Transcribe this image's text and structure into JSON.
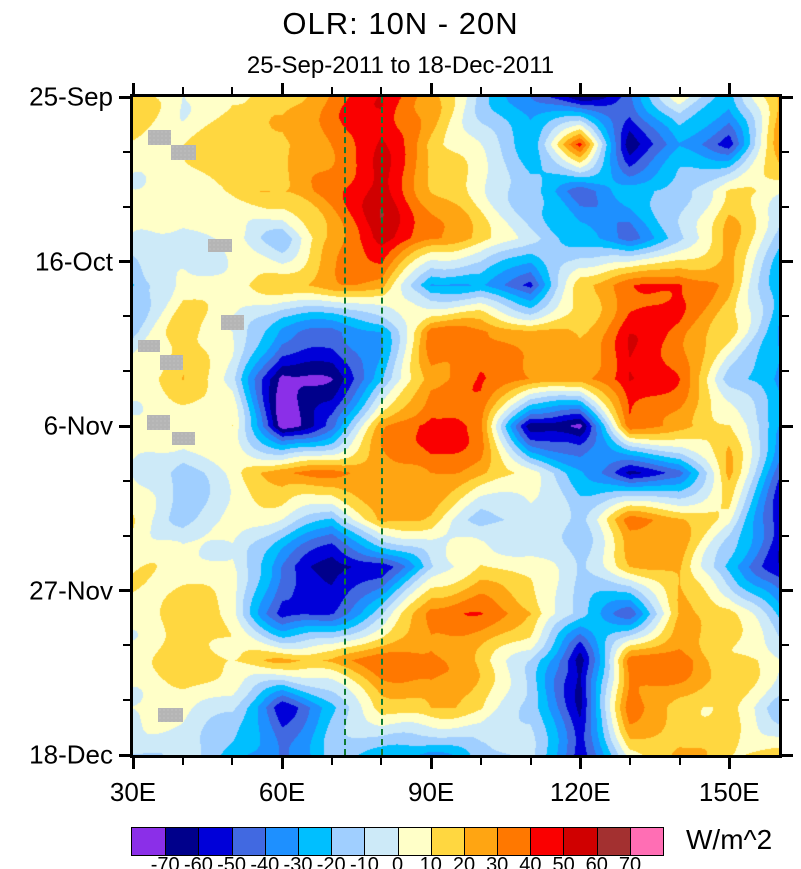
{
  "chart_data": {
    "type": "heatmap",
    "title": "OLR: 10N - 20N",
    "subtitle": "25-Sep-2011 to 18-Dec-2011",
    "units_label": "W/m^2",
    "x_axis": {
      "min": 30,
      "max": 160,
      "major_ticks": [
        30,
        60,
        90,
        120,
        150
      ],
      "major_tick_labels": [
        "30E",
        "60E",
        "90E",
        "120E",
        "150E"
      ],
      "minor_ticks": [
        40,
        50,
        70,
        80,
        100,
        110,
        130,
        140
      ]
    },
    "y_axis": {
      "min_day": 0,
      "max_day": 84,
      "major_tick_days": [
        0,
        21,
        42,
        63,
        84
      ],
      "major_tick_labels": [
        "25-Sep",
        "16-Oct",
        "6-Nov",
        "27-Nov",
        "18-Dec"
      ],
      "minor_tick_days": [
        7,
        14,
        28,
        35,
        49,
        56,
        70,
        77
      ]
    },
    "colorbar": {
      "levels": [
        -70,
        -60,
        -50,
        -40,
        -30,
        -20,
        -10,
        0,
        10,
        20,
        30,
        40,
        50,
        60,
        70
      ],
      "level_labels": [
        "-70",
        "-60",
        "-50",
        "-40",
        "-30",
        "-20",
        "-10",
        "0",
        "10",
        "20",
        "30",
        "40",
        "50",
        "60",
        "70"
      ],
      "colors": [
        "#8b2fe8",
        "#00008b",
        "#0000d9",
        "#4169e1",
        "#1e90ff",
        "#00bfff",
        "#a0cfff",
        "#cdeaf8",
        "#ffffc8",
        "#ffd740",
        "#ffa512",
        "#ff7800",
        "#fa0000",
        "#d00000",
        "#a33030",
        "#ff6eb4"
      ],
      "units": "W/m^2"
    },
    "reference_lines": {
      "lons": [
        72.5,
        80
      ],
      "color": "#0e7a33",
      "style": "dashed"
    },
    "missing_data_patches": [
      {
        "lon": [
          33.0,
          37.6
        ],
        "day": [
          4.2,
          6.1
        ]
      },
      {
        "lon": [
          37.6,
          42.6
        ],
        "day": [
          6.1,
          8.0
        ]
      },
      {
        "lon": [
          45.0,
          50.0
        ],
        "day": [
          18.1,
          19.8
        ]
      },
      {
        "lon": [
          47.8,
          52.4
        ],
        "day": [
          27.8,
          29.7
        ]
      },
      {
        "lon": [
          31.0,
          35.4
        ],
        "day": [
          31.0,
          32.6
        ]
      },
      {
        "lon": [
          35.4,
          40.0
        ],
        "day": [
          32.9,
          34.9
        ]
      },
      {
        "lon": [
          32.8,
          37.4
        ],
        "day": [
          40.6,
          42.5
        ]
      },
      {
        "lon": [
          37.8,
          42.4
        ],
        "day": [
          42.8,
          44.4
        ]
      },
      {
        "lon": [
          35.0,
          40.0
        ],
        "day": [
          78.0,
          79.8
        ]
      }
    ],
    "grid": {
      "comment": "OLR anomaly (W/m^2) estimated on lon x day grid; rows=days, cols=lons",
      "lons": [
        30,
        40,
        50,
        60,
        70,
        80,
        90,
        100,
        110,
        120,
        130,
        140,
        150,
        160
      ],
      "days": [
        0,
        6,
        12,
        18,
        24,
        30,
        36,
        42,
        48,
        54,
        60,
        66,
        72,
        78,
        84
      ],
      "values": [
        [
          15,
          -5,
          15,
          15,
          35,
          45,
          25,
          -15,
          -35,
          -70,
          -45,
          5,
          -25,
          25
        ],
        [
          5,
          5,
          15,
          15,
          35,
          50,
          15,
          -5,
          -25,
          45,
          -65,
          -35,
          -55,
          25
        ],
        [
          5,
          5,
          15,
          25,
          35,
          55,
          25,
          5,
          -15,
          -45,
          -25,
          -15,
          15,
          5
        ],
        [
          5,
          -5,
          5,
          -15,
          25,
          55,
          35,
          15,
          -5,
          -25,
          -45,
          -15,
          25,
          -15
        ],
        [
          -25,
          5,
          5,
          15,
          25,
          25,
          -35,
          -25,
          -55,
          15,
          35,
          45,
          25,
          -25
        ],
        [
          -15,
          15,
          5,
          -35,
          -45,
          -35,
          35,
          35,
          25,
          15,
          45,
          35,
          15,
          -25
        ],
        [
          5,
          15,
          -5,
          -75,
          -65,
          -25,
          25,
          35,
          35,
          25,
          55,
          35,
          -15,
          -35
        ],
        [
          5,
          5,
          15,
          -75,
          -45,
          25,
          50,
          35,
          -65,
          -70,
          35,
          25,
          15,
          -25
        ],
        [
          5,
          -15,
          5,
          35,
          35,
          25,
          35,
          25,
          5,
          -25,
          -65,
          -45,
          25,
          -45
        ],
        [
          5,
          -15,
          5,
          -5,
          -25,
          25,
          15,
          -15,
          -5,
          -15,
          35,
          25,
          5,
          -55
        ],
        [
          5,
          5,
          5,
          -45,
          -70,
          -60,
          -15,
          15,
          5,
          -15,
          15,
          25,
          -25,
          -55
        ],
        [
          5,
          15,
          5,
          -55,
          -45,
          -15,
          35,
          35,
          25,
          -15,
          -45,
          15,
          15,
          -25
        ],
        [
          5,
          15,
          15,
          25,
          25,
          35,
          35,
          15,
          -5,
          -65,
          35,
          35,
          15,
          5
        ],
        [
          5,
          5,
          -5,
          -55,
          -25,
          15,
          25,
          15,
          -15,
          -60,
          35,
          15,
          15,
          -15
        ],
        [
          -15,
          -5,
          -25,
          -45,
          -15,
          -25,
          -35,
          -15,
          -5,
          -55,
          5,
          25,
          15,
          15
        ]
      ]
    }
  }
}
